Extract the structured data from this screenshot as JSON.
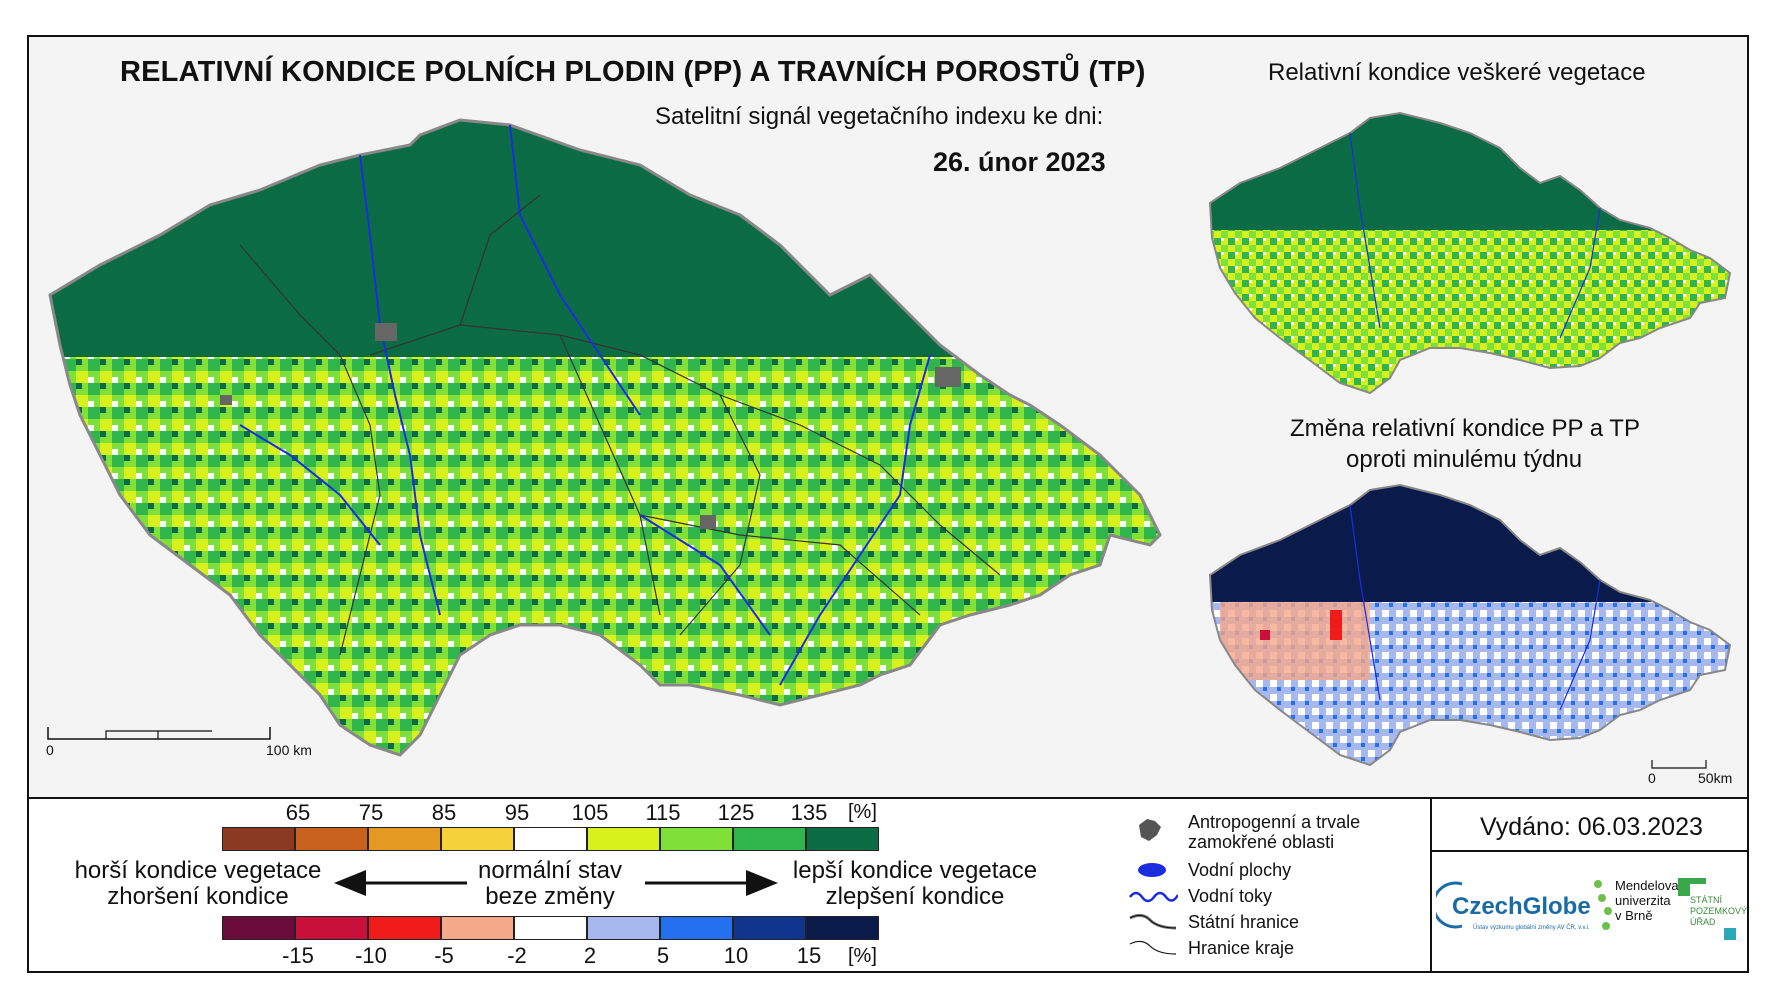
{
  "header": {
    "title": "RELATIVNÍ KONDICE POLNÍCH PLODIN (PP) A TRAVNÍCH POROSTŮ (TP)",
    "subtitle": "Satelitní signál vegetačního indexu ke dni:",
    "date": "26. únor 2023"
  },
  "inset_maps": {
    "all_vegetation_title": "Relativní kondice veškeré vegetace",
    "change_title_line1": "Změna relativní kondice PP a TP",
    "change_title_line2": "oproti minulému týdnu"
  },
  "scale_main": {
    "zero": "0",
    "end": "100 km"
  },
  "scale_inset": {
    "zero": "0",
    "end": "50km"
  },
  "legend_condition": {
    "ticks": [
      "65",
      "75",
      "85",
      "95",
      "105",
      "115",
      "125",
      "135"
    ],
    "unit": "[%]",
    "colors": [
      "#8b3a22",
      "#c8611e",
      "#e49a22",
      "#f5d23b",
      "#ffffff",
      "#d8f01c",
      "#7fe03a",
      "#2fb54c",
      "#0b6b45"
    ]
  },
  "legend_change": {
    "ticks": [
      "-15",
      "-10",
      "-5",
      "-2",
      "2",
      "5",
      "10",
      "15"
    ],
    "unit": "[%]",
    "colors": [
      "#6b0b3c",
      "#c8103a",
      "#f01c1c",
      "#f5a88a",
      "#ffffff",
      "#a6b8ee",
      "#2470f0",
      "#11358f",
      "#0a1a4a"
    ]
  },
  "legend_text": {
    "worse_line1": "horší kondice vegetace",
    "worse_line2": "zhoršení kondice",
    "normal_line1": "normální stav",
    "normal_line2": "beze změny",
    "better_line1": "lepší kondice vegetace",
    "better_line2": "zlepšení kondice"
  },
  "symbols": {
    "anthropogenic": "Antropogenní a trvale zamokřené oblasti",
    "water_bodies": "Vodní plochy",
    "rivers": "Vodní toky",
    "state_border": "Státní hranice",
    "region_border": "Hranice kraje"
  },
  "issued": "Vydáno: 06.03.2023",
  "logos": {
    "czechglobe": "CzechGlobe",
    "czechglobe_sub": "Ústav výzkumu globální změny AV ČR, v.v.i.",
    "mendel_line1": "Mendelova",
    "mendel_line2": "univerzita",
    "mendel_line3": "v Brně",
    "spu_line1": "STÁTNÍ",
    "spu_line2": "POZEMKOVÝ",
    "spu_line3": "ÚŘAD"
  },
  "map_colors": {
    "dark_green": "#0b6b45",
    "mid_green": "#2fb54c",
    "light_green": "#7fe03a",
    "yellow_green": "#d8f01c",
    "navy": "#0a1a4a",
    "light_blue": "#a6b8ee"
  }
}
